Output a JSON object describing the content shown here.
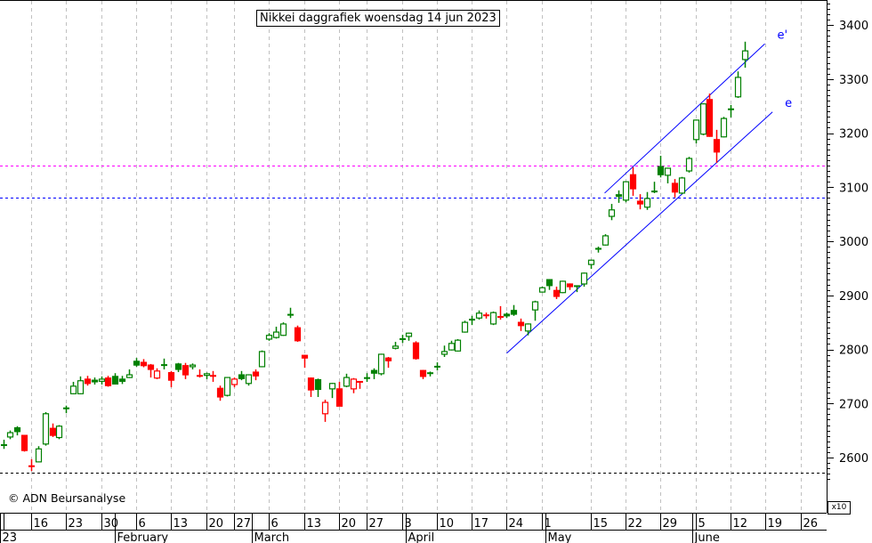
{
  "title": "Nikkei daggrafiek woensdag 14 jun 2023",
  "copyright": "© ADN Beursanalyse",
  "scale_note": "x10",
  "chart_data": {
    "type": "candlestick",
    "title": "Nikkei daggrafiek woensdag 14 jun 2023",
    "ylim": [
      2555,
      3445
    ],
    "y_ticks": [
      2600,
      2700,
      2800,
      2900,
      3000,
      3100,
      3200,
      3300,
      3400
    ],
    "y_scale_multiplier": "x10",
    "first_index": -4,
    "candles_ohlc": [
      [
        2622,
        2633,
        2616,
        2623
      ],
      [
        2638,
        2650,
        2634,
        2646
      ],
      [
        2655,
        2658,
        2641,
        2648
      ],
      [
        2641,
        2642,
        2611,
        2613
      ],
      [
        2586,
        2597,
        2575,
        2584
      ],
      [
        2592,
        2621,
        2591,
        2616
      ],
      [
        2625,
        2684,
        2622,
        2681
      ],
      [
        2654,
        2663,
        2638,
        2641
      ],
      [
        2637,
        2660,
        2634,
        2658
      ],
      [
        2693,
        2696,
        2682,
        2691
      ],
      [
        2718,
        2740,
        2717,
        2732
      ],
      [
        2718,
        2750,
        2717,
        2742
      ],
      [
        2745,
        2751,
        2733,
        2737
      ],
      [
        2743,
        2748,
        2735,
        2740
      ],
      [
        2741,
        2750,
        2735,
        2745
      ],
      [
        2747,
        2751,
        2731,
        2733
      ],
      [
        2750,
        2756,
        2735,
        2736
      ],
      [
        2745,
        2751,
        2736,
        2741
      ],
      [
        2748,
        2763,
        2747,
        2753
      ],
      [
        2778,
        2784,
        2768,
        2771
      ],
      [
        2776,
        2782,
        2767,
        2770
      ],
      [
        2771,
        2773,
        2748,
        2763
      ],
      [
        2747,
        2765,
        2745,
        2760
      ],
      [
        2772,
        2783,
        2763,
        2771
      ],
      [
        2757,
        2760,
        2730,
        2743
      ],
      [
        2773,
        2775,
        2758,
        2763
      ],
      [
        2770,
        2775,
        2745,
        2753
      ],
      [
        2768,
        2774,
        2763,
        2771
      ],
      [
        2752,
        2763,
        2748,
        2751
      ],
      [
        2752,
        2757,
        2745,
        2755
      ],
      [
        2752,
        2760,
        2740,
        2751
      ],
      [
        2728,
        2733,
        2705,
        2712
      ],
      [
        2715,
        2749,
        2713,
        2748
      ],
      [
        2735,
        2748,
        2730,
        2745
      ],
      [
        2753,
        2760,
        2743,
        2746
      ],
      [
        2737,
        2754,
        2733,
        2753
      ],
      [
        2758,
        2763,
        2743,
        2751
      ],
      [
        2768,
        2798,
        2767,
        2796
      ],
      [
        2819,
        2830,
        2816,
        2826
      ],
      [
        2822,
        2842,
        2820,
        2832
      ],
      [
        2826,
        2850,
        2825,
        2847
      ],
      [
        2866,
        2877,
        2858,
        2864
      ],
      [
        2840,
        2844,
        2814,
        2816
      ],
      [
        2789,
        2790,
        2766,
        2784
      ],
      [
        2747,
        2748,
        2712,
        2725
      ],
      [
        2744,
        2746,
        2712,
        2726
      ],
      [
        2681,
        2707,
        2666,
        2702
      ],
      [
        2727,
        2738,
        2710,
        2737
      ],
      [
        2727,
        2740,
        2695,
        2695
      ],
      [
        2732,
        2755,
        2730,
        2748
      ],
      [
        2727,
        2747,
        2719,
        2745
      ],
      [
        2741,
        2741,
        2727,
        2740
      ],
      [
        2746,
        2756,
        2740,
        2747
      ],
      [
        2761,
        2765,
        2745,
        2756
      ],
      [
        2755,
        2792,
        2752,
        2791
      ],
      [
        2784,
        2786,
        2766,
        2779
      ],
      [
        2802,
        2814,
        2800,
        2806
      ],
      [
        2818,
        2827,
        2812,
        2819
      ],
      [
        2824,
        2831,
        2816,
        2830
      ],
      [
        2812,
        2815,
        2781,
        2783
      ],
      [
        2761,
        2762,
        2745,
        2750
      ],
      [
        2755,
        2759,
        2750,
        2756
      ],
      [
        2766,
        2776,
        2761,
        2768
      ],
      [
        2791,
        2807,
        2786,
        2796
      ],
      [
        2799,
        2816,
        2798,
        2811
      ],
      [
        2797,
        2819,
        2796,
        2817
      ],
      [
        2832,
        2853,
        2831,
        2850
      ],
      [
        2855,
        2862,
        2845,
        2855
      ],
      [
        2858,
        2872,
        2855,
        2867
      ],
      [
        2864,
        2868,
        2857,
        2863
      ],
      [
        2847,
        2870,
        2845,
        2868
      ],
      [
        2861,
        2880,
        2855,
        2860
      ],
      [
        2865,
        2868,
        2858,
        2862
      ],
      [
        2872,
        2882,
        2862,
        2865
      ],
      [
        2850,
        2857,
        2834,
        2844
      ],
      [
        2834,
        2848,
        2826,
        2847
      ],
      [
        2873,
        2890,
        2853,
        2888
      ],
      [
        2906,
        2916,
        2905,
        2914
      ],
      [
        2929,
        2930,
        2910,
        2918
      ],
      [
        2909,
        2916,
        2893,
        2898
      ],
      [
        2905,
        2927,
        2904,
        2926
      ],
      [
        2921,
        2922,
        2910,
        2916
      ],
      [
        2915,
        2918,
        2906,
        2917
      ],
      [
        2921,
        2942,
        2916,
        2941
      ],
      [
        2957,
        2966,
        2949,
        2965
      ],
      [
        2984,
        2990,
        2979,
        2986
      ],
      [
        2993,
        3013,
        2992,
        3010
      ],
      [
        3046,
        3069,
        3039,
        3058
      ],
      [
        3086,
        3094,
        3071,
        3083
      ],
      [
        3076,
        3111,
        3072,
        3110
      ],
      [
        3123,
        3137,
        3084,
        3097
      ],
      [
        3074,
        3087,
        3059,
        3069
      ],
      [
        3063,
        3091,
        3058,
        3079
      ],
      [
        3090,
        3110,
        3089,
        3092
      ],
      [
        3138,
        3158,
        3118,
        3123
      ],
      [
        3122,
        3136,
        3107,
        3135
      ],
      [
        3107,
        3115,
        3081,
        3091
      ],
      [
        3089,
        3119,
        3087,
        3117
      ],
      [
        3130,
        3156,
        3127,
        3153
      ],
      [
        3188,
        3225,
        3181,
        3224
      ],
      [
        3198,
        3255,
        3196,
        3254
      ],
      [
        3262,
        3273,
        3193,
        3194
      ],
      [
        3188,
        3206,
        3145,
        3165
      ],
      [
        3193,
        3230,
        3192,
        3227
      ],
      [
        3243,
        3252,
        3229,
        3244
      ],
      [
        3267,
        3314,
        3265,
        3303
      ],
      [
        3336,
        3369,
        3321,
        3352
      ]
    ],
    "horizontal_lines": [
      {
        "name": "resistance-line",
        "value": 3140,
        "color": "#ff00ff"
      },
      {
        "name": "support-line",
        "value": 3080,
        "color": "#0000ff"
      },
      {
        "name": "low-line",
        "value": 2572,
        "color": "#000000"
      }
    ],
    "trend_lines": [
      {
        "label": "e'",
        "from": [
          82,
          3089
        ],
        "to": [
          104.9,
          3365
        ],
        "color": "#0000ff"
      },
      {
        "label": "e",
        "from": [
          68,
          2793
        ],
        "to": [
          106,
          3239
        ],
        "color": "#0000ff"
      }
    ],
    "x_ticks": [
      {
        "i": -4,
        "label": ""
      },
      {
        "i": 0,
        "label": "16"
      },
      {
        "i": 5,
        "label": "23"
      },
      {
        "i": 10,
        "label": "30"
      },
      {
        "i": 15,
        "label": "6"
      },
      {
        "i": 20,
        "label": "13"
      },
      {
        "i": 25,
        "label": "20"
      },
      {
        "i": 29,
        "label": "27"
      },
      {
        "i": 34,
        "label": "6"
      },
      {
        "i": 39,
        "label": "13"
      },
      {
        "i": 44,
        "label": "20"
      },
      {
        "i": 48,
        "label": "27"
      },
      {
        "i": 53,
        "label": "3"
      },
      {
        "i": 58,
        "label": "10"
      },
      {
        "i": 63,
        "label": "17"
      },
      {
        "i": 68,
        "label": "24"
      },
      {
        "i": 73,
        "label": "1"
      },
      {
        "i": 80,
        "label": "15"
      },
      {
        "i": 85,
        "label": "22"
      },
      {
        "i": 90,
        "label": "29"
      },
      {
        "i": 95,
        "label": "5"
      },
      {
        "i": 100,
        "label": "12"
      },
      {
        "i": 105,
        "label": "19"
      },
      {
        "i": 110,
        "label": "26"
      }
    ],
    "months": [
      {
        "i": -4.5,
        "label": "23"
      },
      {
        "i": 12,
        "label": "February"
      },
      {
        "i": 31.5,
        "label": "March"
      },
      {
        "i": 53.5,
        "label": "April"
      },
      {
        "i": 73.5,
        "label": "May"
      },
      {
        "i": 94.5,
        "label": "June"
      }
    ],
    "colors": {
      "up": "#008000",
      "down": "#ff0000",
      "grid": "#c0c0c0"
    }
  }
}
